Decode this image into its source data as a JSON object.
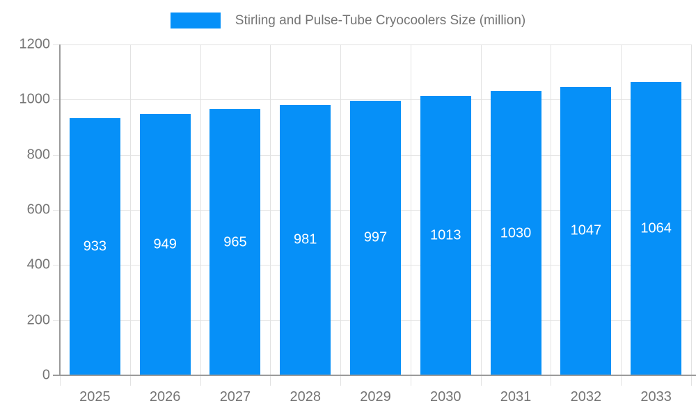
{
  "chart_data": {
    "type": "bar",
    "legend": "Stirling and Pulse-Tube Cryocoolers Size (million)",
    "legend_position": "top",
    "categories": [
      "2025",
      "2026",
      "2027",
      "2028",
      "2029",
      "2030",
      "2031",
      "2032",
      "2033"
    ],
    "values": [
      933,
      949,
      965,
      981,
      997,
      1013,
      1030,
      1047,
      1064
    ],
    "title": "",
    "xlabel": "",
    "ylabel": "",
    "ylim": [
      0,
      1200
    ],
    "yticks": [
      0,
      200,
      400,
      600,
      800,
      1000,
      1200
    ],
    "grid": true,
    "colors": {
      "bar": "#0690f8",
      "bar_label": "#ffffff",
      "axis_label": "#757575",
      "grid_line": "#e2e2e2",
      "axis_line": "#9a9a9a",
      "background": "#ffffff"
    }
  }
}
